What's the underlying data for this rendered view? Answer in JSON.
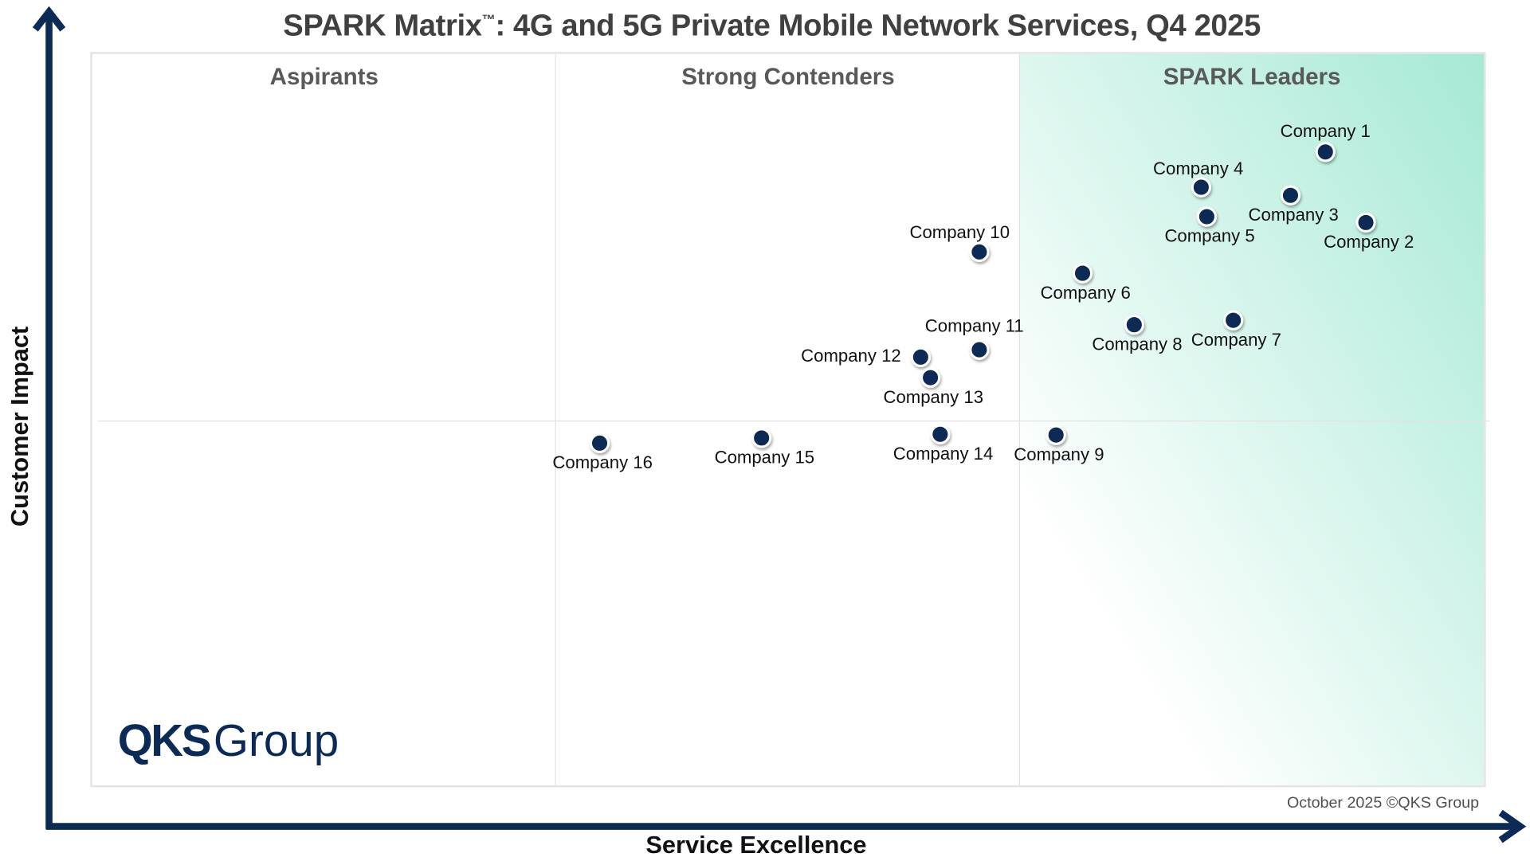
{
  "chart_data": {
    "type": "scatter",
    "title": "SPARK Matrix™: 4G and 5G Private Mobile Network Services, Q4 2025",
    "title_main": "SPARK Matrix",
    "title_tm": "™",
    "title_rest": ": 4G and 5G Private Mobile Network Services, Q4 2025",
    "xlabel": "Service Excellence",
    "ylabel": "Customer Impact",
    "xlim": [
      0,
      100
    ],
    "ylim": [
      0,
      100
    ],
    "quadrants": [
      "Aspirants",
      "Strong Contenders",
      "SPARK Leaders"
    ],
    "grid": false,
    "point_color": "#0b2a55",
    "leaders_color": "#a6e9d5",
    "axis_color": "#0b2a55",
    "points": [
      {
        "label": "Company 1",
        "x": 88.5,
        "y": 86.4
      },
      {
        "label": "Company 2",
        "x": 91.4,
        "y": 76.8
      },
      {
        "label": "Company 3",
        "x": 86.0,
        "y": 80.5
      },
      {
        "label": "Company 4",
        "x": 79.6,
        "y": 81.6
      },
      {
        "label": "Company 5",
        "x": 80.0,
        "y": 77.6
      },
      {
        "label": "Company 6",
        "x": 71.1,
        "y": 69.9
      },
      {
        "label": "Company 7",
        "x": 81.9,
        "y": 63.5
      },
      {
        "label": "Company 8",
        "x": 74.8,
        "y": 62.9
      },
      {
        "label": "Company 9",
        "x": 69.2,
        "y": 47.9
      },
      {
        "label": "Company 10",
        "x": 63.7,
        "y": 72.8
      },
      {
        "label": "Company 11",
        "x": 63.7,
        "y": 59.5
      },
      {
        "label": "Company 12",
        "x": 59.5,
        "y": 58.5
      },
      {
        "label": "Company 13",
        "x": 60.2,
        "y": 55.7
      },
      {
        "label": "Company 14",
        "x": 60.9,
        "y": 48.0
      },
      {
        "label": "Company 15",
        "x": 48.1,
        "y": 47.5
      },
      {
        "label": "Company 16",
        "x": 36.5,
        "y": 46.8
      }
    ]
  },
  "logo": {
    "bold": "QKS",
    "light": "Group"
  },
  "footer": "October 2025 ©QKS Group"
}
